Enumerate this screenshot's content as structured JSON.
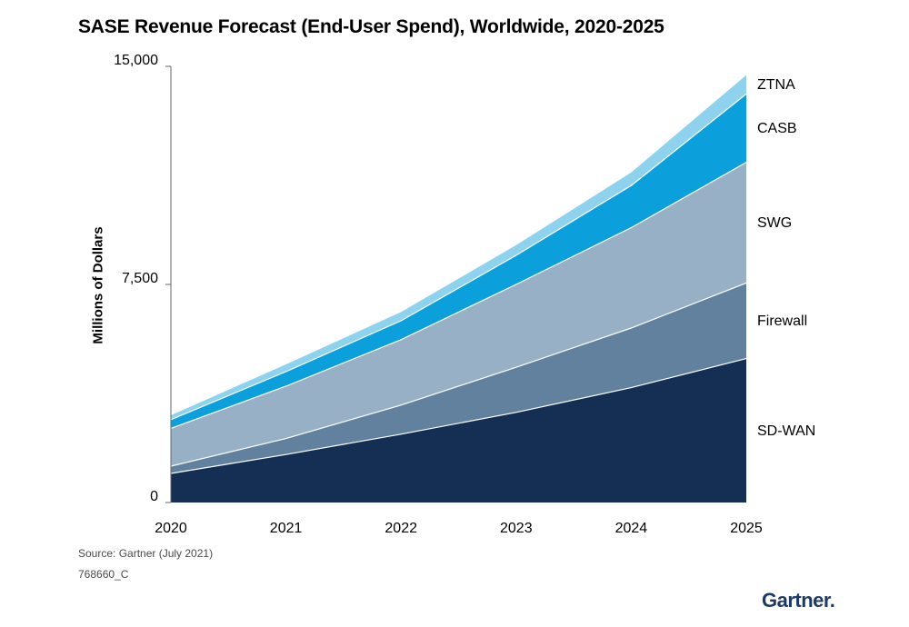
{
  "chart_data": {
    "type": "area",
    "stacked": true,
    "title": "SASE Revenue Forecast (End-User Spend), Worldwide, 2020-2025",
    "ylabel": "Millions of Dollars",
    "xlabel": "",
    "x": [
      "2020",
      "2021",
      "2022",
      "2023",
      "2024",
      "2025"
    ],
    "ylim": [
      0,
      15000
    ],
    "yticks": [
      0,
      7500,
      15000
    ],
    "ytick_labels": [
      "0",
      "7,500",
      "15,000"
    ],
    "grid": false,
    "legend": "direct labels at right",
    "series": [
      {
        "name": "SD-WAN",
        "values": [
          1000,
          1650,
          2350,
          3100,
          3950,
          4950
        ],
        "color": "#142e54"
      },
      {
        "name": "Firewall",
        "values": [
          250,
          550,
          1000,
          1550,
          2050,
          2600
        ],
        "color": "#62819f"
      },
      {
        "name": "SWG",
        "values": [
          1300,
          1800,
          2250,
          2850,
          3450,
          4150
        ],
        "color": "#98b0c6"
      },
      {
        "name": "CASB",
        "values": [
          300,
          500,
          650,
          1000,
          1450,
          2350
        ],
        "color": "#0ba0dc"
      },
      {
        "name": "ZTNA",
        "values": [
          150,
          250,
          300,
          350,
          450,
          650
        ],
        "color": "#8ed2ee"
      }
    ]
  },
  "footer": {
    "source": "Source: Gartner (July 2021)",
    "doc_id": "768660_C",
    "logo_text": "Gartner"
  }
}
